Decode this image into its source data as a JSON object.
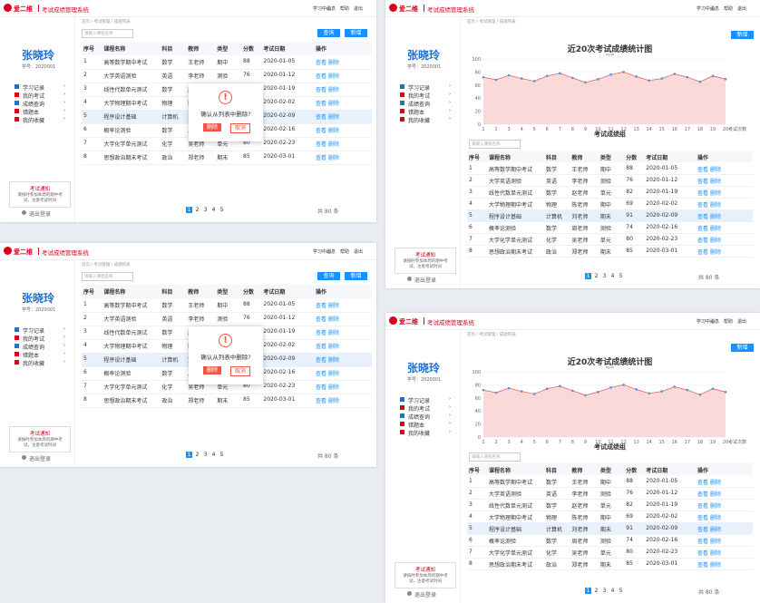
{
  "header": {
    "logo": "爱二维",
    "title": "考试成绩管理系统",
    "nav": [
      "学习中心",
      "消息",
      "帮助",
      "退出"
    ]
  },
  "sidebar": {
    "name": "张晓玲",
    "id": "学号：2020001",
    "menu": [
      "学习记录",
      "我的考试",
      "成绩查询",
      "错题本",
      "我的收藏"
    ],
    "notice_title": "考试通知",
    "notice_text": "请按时参加本周的期中考试，注意考试时间",
    "logout": "退出登录"
  },
  "breadcrumb": "首页 / 考试管理 / 成绩列表",
  "search_placeholder": "请输入课程名称",
  "buttons": {
    "search": "查询",
    "add": "新增"
  },
  "table": {
    "headers": [
      "序号",
      "课程名称",
      "科目",
      "教师",
      "类型",
      "分数",
      "考试日期",
      "操作"
    ],
    "rows": [
      [
        "1",
        "高等数学期中考试",
        "数学",
        "王老师",
        "期中",
        "88",
        "2020-01-05"
      ],
      [
        "2",
        "大学英语测验",
        "英语",
        "李老师",
        "测验",
        "76",
        "2020-01-12"
      ],
      [
        "3",
        "线性代数单元测试",
        "数学",
        "赵老师",
        "单元",
        "82",
        "2020-01-19"
      ],
      [
        "4",
        "大学物理期中考试",
        "物理",
        "陈老师",
        "期中",
        "69",
        "2020-02-02"
      ],
      [
        "5",
        "程序设计基础",
        "计算机",
        "刘老师",
        "期末",
        "91",
        "2020-02-09"
      ],
      [
        "6",
        "概率论测验",
        "数学",
        "周老师",
        "测验",
        "74",
        "2020-02-16"
      ],
      [
        "7",
        "大学化学单元测试",
        "化学",
        "吴老师",
        "单元",
        "80",
        "2020-02-23"
      ],
      [
        "8",
        "思想政治期末考试",
        "政治",
        "郑老师",
        "期末",
        "85",
        "2020-03-01"
      ]
    ],
    "actions": [
      "查看",
      "删除"
    ]
  },
  "dialog": {
    "message": "确认从列表中删除?",
    "confirm": "删除",
    "cancel": "取消"
  },
  "pagination": [
    "1",
    "2",
    "3",
    "4",
    "5"
  ],
  "total": "共 80 条",
  "list_title": "考试成绩组",
  "chart_data": {
    "type": "line",
    "title": "近20次考试成绩统计图",
    "categories": [
      "1",
      "2",
      "3",
      "4",
      "5",
      "6",
      "7",
      "8",
      "9",
      "10",
      "11",
      "12",
      "13",
      "14",
      "15",
      "16",
      "17",
      "18",
      "19",
      "20"
    ],
    "series": [
      {
        "name": "成绩",
        "color": "#e06666",
        "values": [
          72,
          68,
          75,
          70,
          66,
          74,
          78,
          71,
          64,
          69,
          76,
          80,
          73,
          67,
          70,
          77,
          72,
          65,
          74,
          69
        ]
      }
    ],
    "ylim": [
      0,
      100
    ],
    "yticks": [
      0,
      20,
      40,
      60,
      80,
      100
    ],
    "x_label": "考试次数"
  }
}
